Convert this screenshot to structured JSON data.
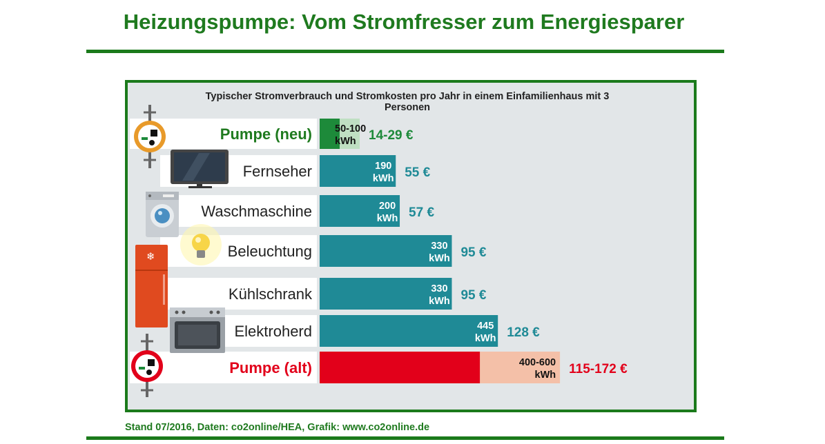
{
  "title": "Heizungspumpe: Vom Stromfresser zum Energiesparer",
  "subtitle": "Typischer Stromverbrauch und Stromkosten pro Jahr in einem Einfamilienhaus mit 3 Personen",
  "footer": "Stand 07/2016, Daten: co2online/HEA, Grafik: www.co2online.de",
  "colors": {
    "title_green": "#1f7a1f",
    "bar_teal": "#1f8a96",
    "new_pump_dark": "#1d8a3a",
    "new_pump_light": "#bfdfc2",
    "old_pump_red": "#e2001a",
    "old_pump_light": "#f4c0a8"
  },
  "icons": [
    "heating-pump-new-icon",
    "tv-icon",
    "washing-machine-icon",
    "light-bulb-icon",
    "fridge-icon",
    "stove-icon",
    "heating-pump-old-icon"
  ],
  "chart_data": {
    "type": "bar",
    "orientation": "horizontal",
    "unit": "kWh",
    "categories": [
      "Pumpe (neu)",
      "Fernseher",
      "Waschmaschine",
      "Beleuchtung",
      "Kühlschrank",
      "Elektroherd",
      "Pumpe (alt)"
    ],
    "items": [
      {
        "label": "Pumpe (neu)",
        "min": 50,
        "max": 100,
        "value_label": "50-100",
        "unit_label": "kWh",
        "cost": "14-29 €"
      },
      {
        "label": "Fernseher",
        "min": 190,
        "max": 190,
        "value_label": "190",
        "unit_label": "kWh",
        "cost": "55 €"
      },
      {
        "label": "Waschmaschine",
        "min": 200,
        "max": 200,
        "value_label": "200",
        "unit_label": "kWh",
        "cost": "57 €"
      },
      {
        "label": "Beleuchtung",
        "min": 330,
        "max": 330,
        "value_label": "330",
        "unit_label": "kWh",
        "cost": "95 €"
      },
      {
        "label": "Kühlschrank",
        "min": 330,
        "max": 330,
        "value_label": "330",
        "unit_label": "kWh",
        "cost": "95 €"
      },
      {
        "label": "Elektroherd",
        "min": 445,
        "max": 445,
        "value_label": "445",
        "unit_label": "kWh",
        "cost": "128 €"
      },
      {
        "label": "Pumpe (alt)",
        "min": 400,
        "max": 600,
        "value_label": "400-600",
        "unit_label": "kWh",
        "cost": "115-172 €"
      }
    ]
  }
}
